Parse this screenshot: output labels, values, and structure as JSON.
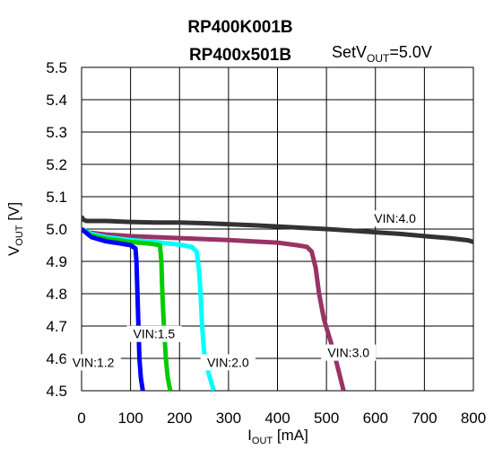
{
  "chart_data": {
    "type": "line",
    "title_line1": "RP400K001B",
    "title_line2": "RP400x501B",
    "set_label": {
      "prefix": "SetV",
      "sub": "OUT",
      "suffix": "=5.0V"
    },
    "xlabel": {
      "prefix": "I",
      "sub": "OUT",
      "suffix": " [mA]"
    },
    "ylabel": {
      "prefix": "V",
      "sub": "OUT",
      "suffix": " [V]"
    },
    "xlim": [
      0,
      800
    ],
    "ylim": [
      4.5,
      5.5
    ],
    "x_ticks": [
      "0",
      "100",
      "200",
      "300",
      "400",
      "500",
      "600",
      "700",
      "800"
    ],
    "y_ticks": [
      "5.5",
      "5.4",
      "5.3",
      "5.2",
      "5.1",
      "5.0",
      "4.9",
      "4.8",
      "4.7",
      "4.6",
      "4.5"
    ],
    "grid": true,
    "series": [
      {
        "name": "VIN:4.0",
        "color": "#333333",
        "x": [
          0,
          2,
          10,
          50,
          100,
          150,
          200,
          250,
          300,
          350,
          400,
          450,
          500,
          550,
          600,
          650,
          700,
          750,
          790,
          800
        ],
        "y": [
          5.04,
          5.03,
          5.025,
          5.025,
          5.022,
          5.02,
          5.02,
          5.018,
          5.015,
          5.012,
          5.008,
          5.004,
          5.0,
          4.995,
          4.99,
          4.985,
          4.978,
          4.972,
          4.965,
          4.96
        ]
      },
      {
        "name": "VIN:3.0",
        "color": "#993366",
        "x": [
          0,
          10,
          50,
          100,
          200,
          300,
          350,
          400,
          440,
          460,
          470,
          478,
          485,
          495,
          505,
          515,
          525,
          535
        ],
        "y": [
          5.0,
          4.99,
          4.983,
          4.978,
          4.972,
          4.966,
          4.962,
          4.958,
          4.95,
          4.945,
          4.93,
          4.88,
          4.8,
          4.72,
          4.67,
          4.62,
          4.56,
          4.5
        ]
      },
      {
        "name": "VIN:2.0",
        "color": "#00FFFF",
        "x": [
          0,
          20,
          50,
          100,
          150,
          200,
          225,
          235,
          240,
          243,
          246,
          250,
          255,
          262,
          270
        ],
        "y": [
          5.0,
          4.985,
          4.975,
          4.966,
          4.96,
          4.952,
          4.945,
          4.93,
          4.87,
          4.8,
          4.7,
          4.62,
          4.58,
          4.54,
          4.5
        ]
      },
      {
        "name": "VIN:1.5",
        "color": "#00CC00",
        "x": [
          0,
          20,
          50,
          100,
          140,
          160,
          163,
          165,
          168,
          172,
          176,
          181
        ],
        "y": [
          5.0,
          4.98,
          4.97,
          4.96,
          4.955,
          4.95,
          4.9,
          4.8,
          4.7,
          4.6,
          4.54,
          4.5
        ]
      },
      {
        "name": "VIN:1.2",
        "color": "#0000FF",
        "x": [
          0,
          20,
          50,
          80,
          100,
          110,
          112,
          114,
          116,
          118,
          121,
          125
        ],
        "y": [
          5.0,
          4.975,
          4.962,
          4.955,
          4.95,
          4.94,
          4.9,
          4.8,
          4.7,
          4.6,
          4.54,
          4.5
        ]
      }
    ],
    "labels": [
      {
        "text": "VIN:4.0",
        "x": 640,
        "y": 5.03
      },
      {
        "text": "VIN:3.0",
        "x": 545,
        "y": 4.615
      },
      {
        "text": "VIN:2.0",
        "x": 299,
        "y": 4.585
      },
      {
        "text": "VIN:1.5",
        "x": 148,
        "y": 4.673
      },
      {
        "text": "VIN:1.2",
        "x": 24,
        "y": 4.585
      }
    ]
  }
}
